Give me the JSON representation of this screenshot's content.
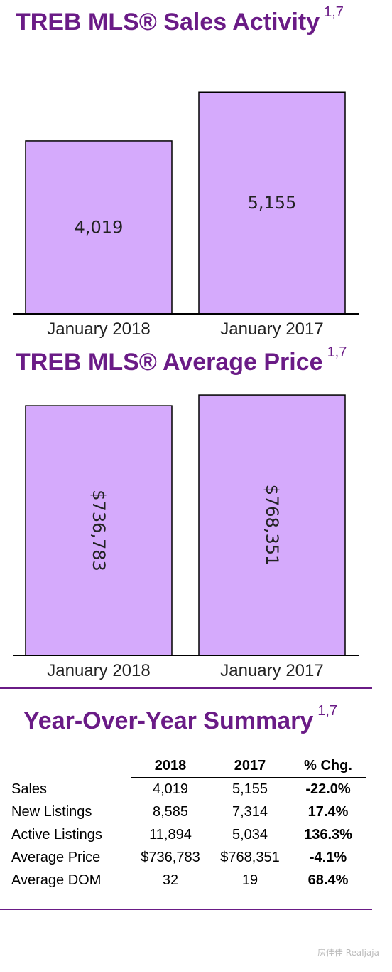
{
  "sections": {
    "sales": {
      "title": "TREB MLS® Sales Activity",
      "footnote": "1,7"
    },
    "price": {
      "title": "TREB MLS® Average Price",
      "footnote": "1,7"
    },
    "summary": {
      "title": "Year-Over-Year Summary",
      "footnote": "1,7"
    }
  },
  "colors": {
    "title": "#6a1b86",
    "bar_fill": "#d5aafc",
    "divider": "#6a1b86"
  },
  "chart_data": [
    {
      "type": "bar",
      "title": "TREB MLS® Sales Activity",
      "categories": [
        "January 2018",
        "January 2017"
      ],
      "values": [
        4019,
        5155
      ],
      "value_labels": [
        "4,019",
        "5,155"
      ],
      "label_orientation": "horizontal",
      "ylim": [
        0,
        6300
      ],
      "grid": false
    },
    {
      "type": "bar",
      "title": "TREB MLS® Average Price",
      "categories": [
        "January 2018",
        "January 2017"
      ],
      "values": [
        736783,
        768351
      ],
      "value_labels": [
        "$736,783",
        "$768,351"
      ],
      "label_orientation": "vertical",
      "ylim": [
        0,
        800000
      ],
      "grid": false
    }
  ],
  "summary_table": {
    "headers": [
      "",
      "2018",
      "2017",
      "% Chg."
    ],
    "rows": [
      {
        "label": "Sales",
        "y2018": "4,019",
        "y2017": "5,155",
        "chg": "-22.0%"
      },
      {
        "label": "New Listings",
        "y2018": "8,585",
        "y2017": "7,314",
        "chg": "17.4%"
      },
      {
        "label": "Active Listings",
        "y2018": "11,894",
        "y2017": "5,034",
        "chg": "136.3%"
      },
      {
        "label": "Average Price",
        "y2018": "$736,783",
        "y2017": "$768,351",
        "chg": "-4.1%"
      },
      {
        "label": "Average DOM",
        "y2018": "32",
        "y2017": "19",
        "chg": "68.4%"
      }
    ]
  },
  "watermark": "房佳佳 Realjaja"
}
